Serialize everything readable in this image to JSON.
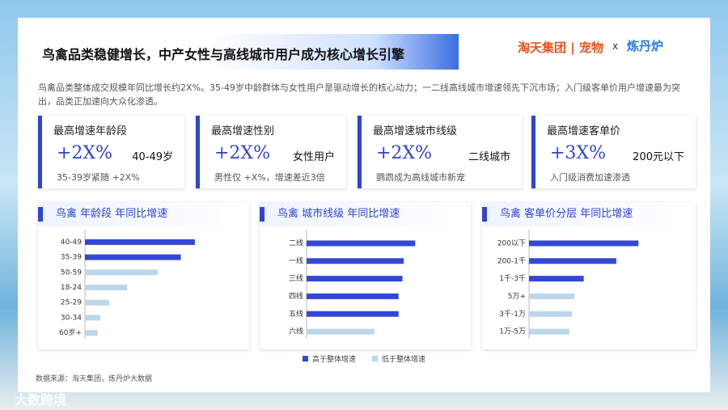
{
  "header": {
    "title": "鸟禽品类稳健增长，中产女性与高线城市用户成为核心增长引擎",
    "logo_left": "淘天集团",
    "logo_mid": "宠物",
    "logo_x": "x",
    "logo_right": "炼丹炉"
  },
  "summary": "鸟禽品类整体成交规模年同比增长约2X%。35-49岁中龄群体与女性用户是驱动增长的核心动力；一二线高线城市增速领先下沉市场；入门级客单价用户增速最为突出，品类正加速向大众化渗透。",
  "cards": [
    {
      "label": "最高增速年龄段",
      "value": "+2X%",
      "side": "40-49岁",
      "note": "35-39岁紧随 +2X%"
    },
    {
      "label": "最高增速性别",
      "value": "+2X%",
      "side": "女性用户",
      "note": "男性仅 +X%，增速差近3倍"
    },
    {
      "label": "最高增速城市线级",
      "value": "+2X%",
      "side": "二线城市",
      "note": "鹦鹉成为高线城市新宠"
    },
    {
      "label": "最高增速客单价",
      "value": "+3X%",
      "side": "200元以下",
      "note": "入门级消费加速渗透"
    }
  ],
  "chart_data": [
    {
      "type": "bar",
      "title": "鸟禽 年龄段 年同比增速",
      "categories": [
        "40-49",
        "35-39",
        "50-59",
        "18-24",
        "25-29",
        "30-34",
        "60岁+"
      ],
      "values": [
        86,
        75,
        57,
        33,
        19,
        12,
        10
      ],
      "above": [
        true,
        true,
        false,
        false,
        false,
        false,
        false
      ],
      "xlim": [
        0,
        100
      ]
    },
    {
      "type": "bar",
      "title": "鸟禽 城市线级 年同比增速",
      "categories": [
        "二线",
        "一线",
        "三线",
        "四线",
        "五线",
        "六线"
      ],
      "values": [
        85,
        76,
        75,
        72,
        72,
        53
      ],
      "above": [
        true,
        true,
        true,
        true,
        true,
        false
      ],
      "xlim": [
        0,
        100
      ]
    },
    {
      "type": "bar",
      "title": "鸟禽 客单价分层 年同比增速",
      "categories": [
        "200以下",
        "200-1千",
        "1千-3千",
        "5万+",
        "3千-1万",
        "1万-5万"
      ],
      "values": [
        84,
        67,
        42,
        35,
        33,
        31
      ],
      "above": [
        true,
        true,
        true,
        false,
        false,
        false
      ],
      "xlim": [
        0,
        100
      ]
    }
  ],
  "legend": [
    {
      "name": "高于整体增速",
      "color": "#3347d6"
    },
    {
      "name": "低于整体增速",
      "color": "#bcd7ea"
    }
  ],
  "footer": "数据来源：淘天集团，炼丹炉大数据",
  "watermark": "大数跨境"
}
